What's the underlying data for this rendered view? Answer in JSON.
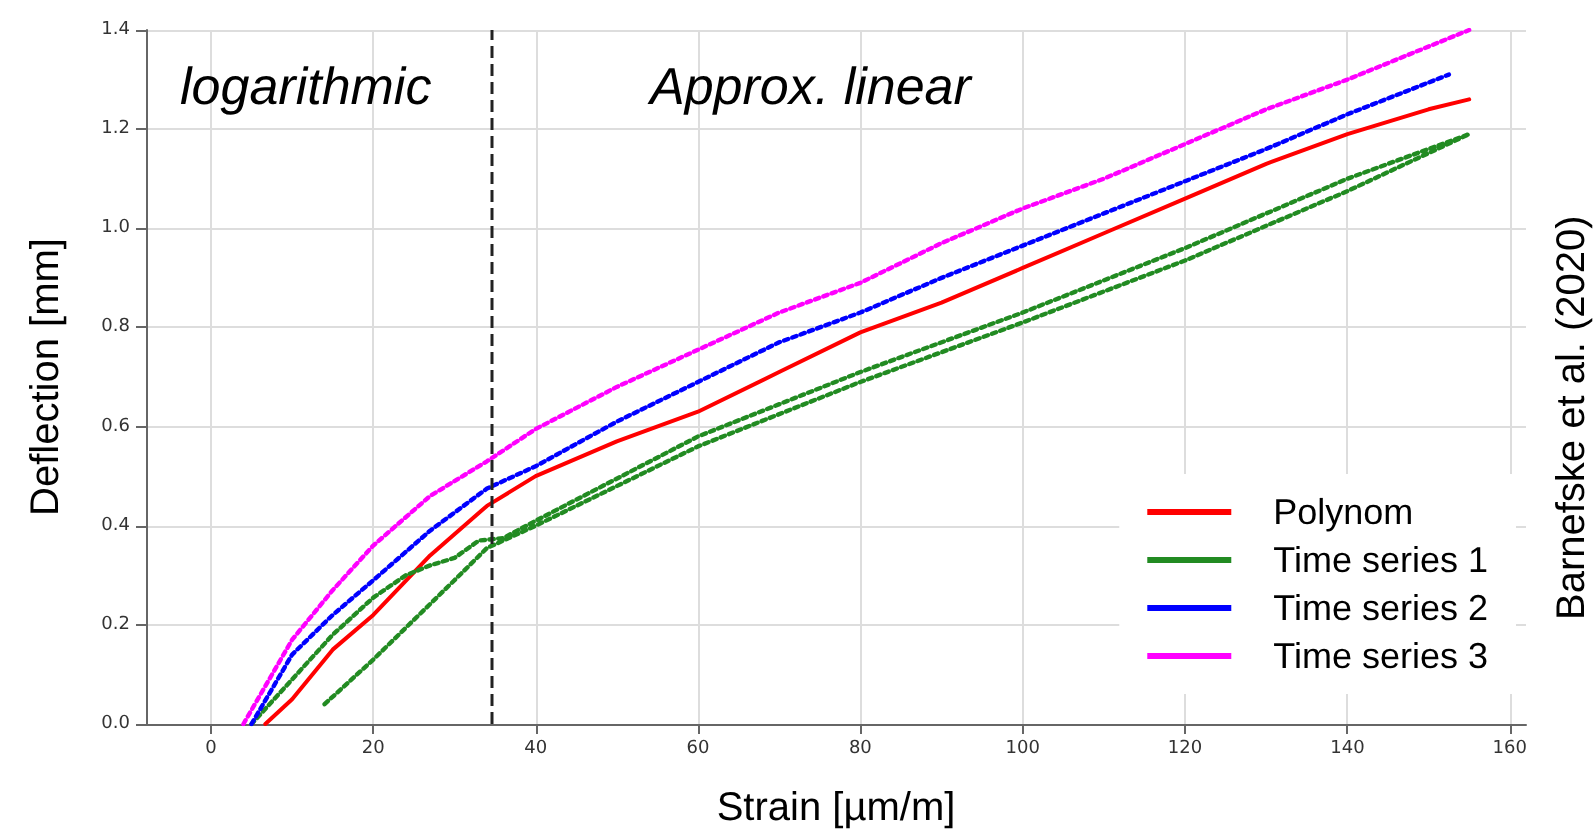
{
  "chart_data": {
    "type": "line",
    "xlabel": "Strain [µm/m]",
    "ylabel": "Deflection [mm]",
    "xlim": [
      -8,
      162
    ],
    "xticks": [
      0,
      20,
      40,
      60,
      80,
      100,
      120,
      140,
      160
    ],
    "ylim": [
      0,
      1.4
    ],
    "yticks": [
      {
        "value": 0,
        "label": "0.0"
      },
      {
        "value": 0.2,
        "label": "0.2"
      },
      {
        "value": 0.4,
        "label": "0.4"
      },
      {
        "value": 0.6,
        "label": "0.6"
      },
      {
        "value": 0.8,
        "label": "0.8"
      },
      {
        "value": 1.0,
        "label": "1.0"
      },
      {
        "value": 1.2,
        "label": "1.2"
      },
      {
        "value": 1.4,
        "label": "1.4"
      }
    ],
    "grid": true,
    "legend": "bottom right",
    "marker": "none",
    "ref_lines": [
      {
        "axis": "x",
        "value": 34.5,
        "color": "#222222",
        "line_style": "dashed"
      }
    ],
    "annotations": [
      "logarithmic",
      "Approx. linear",
      "Barnefske et al. (2020)"
    ],
    "series": [
      {
        "name": "Polynom",
        "color": "#ff0000",
        "line_style": "solid",
        "x": [
          6.7,
          10,
          15,
          20,
          27,
          34,
          40,
          50,
          60,
          70,
          80,
          90,
          100,
          110,
          120,
          130,
          140,
          150,
          155
        ],
        "values": [
          0,
          0.05,
          0.15,
          0.22,
          0.34,
          0.44,
          0.5,
          0.57,
          0.63,
          0.71,
          0.79,
          0.85,
          0.92,
          0.99,
          1.06,
          1.13,
          1.19,
          1.24,
          1.26
        ]
      },
      {
        "name": "Time series 1",
        "color": "#228b22",
        "line_style": "dotted",
        "x": [
          14,
          20,
          25,
          30,
          34,
          40,
          60,
          80,
          100,
          120,
          140,
          155,
          140,
          120,
          100,
          80,
          60,
          40,
          36,
          33,
          30,
          27,
          24,
          20,
          15,
          10,
          5
        ],
        "values": [
          0.04,
          0.13,
          0.21,
          0.29,
          0.355,
          0.4,
          0.56,
          0.69,
          0.81,
          0.935,
          1.075,
          1.19,
          1.1,
          0.96,
          0.83,
          0.71,
          0.58,
          0.41,
          0.375,
          0.37,
          0.335,
          0.32,
          0.3,
          0.255,
          0.18,
          0.09,
          0
        ]
      },
      {
        "name": "Time series 2",
        "color": "#0000ff",
        "line_style": "dotted",
        "x": [
          5,
          10,
          15,
          20,
          27,
          34,
          40,
          50,
          60,
          70,
          80,
          90,
          100,
          110,
          120,
          130,
          140,
          152.5
        ],
        "values": [
          0,
          0.14,
          0.22,
          0.29,
          0.39,
          0.475,
          0.52,
          0.61,
          0.69,
          0.77,
          0.83,
          0.9,
          0.965,
          1.03,
          1.095,
          1.16,
          1.23,
          1.31
        ]
      },
      {
        "name": "Time series 3",
        "color": "#ff00ff",
        "line_style": "dotted",
        "x": [
          4,
          10,
          15,
          20,
          27,
          34,
          40,
          50,
          60,
          70,
          80,
          90,
          100,
          110,
          120,
          130,
          140,
          155
        ],
        "values": [
          0,
          0.17,
          0.27,
          0.36,
          0.46,
          0.53,
          0.595,
          0.68,
          0.755,
          0.83,
          0.89,
          0.97,
          1.04,
          1.1,
          1.17,
          1.24,
          1.3,
          1.4
        ]
      }
    ]
  }
}
